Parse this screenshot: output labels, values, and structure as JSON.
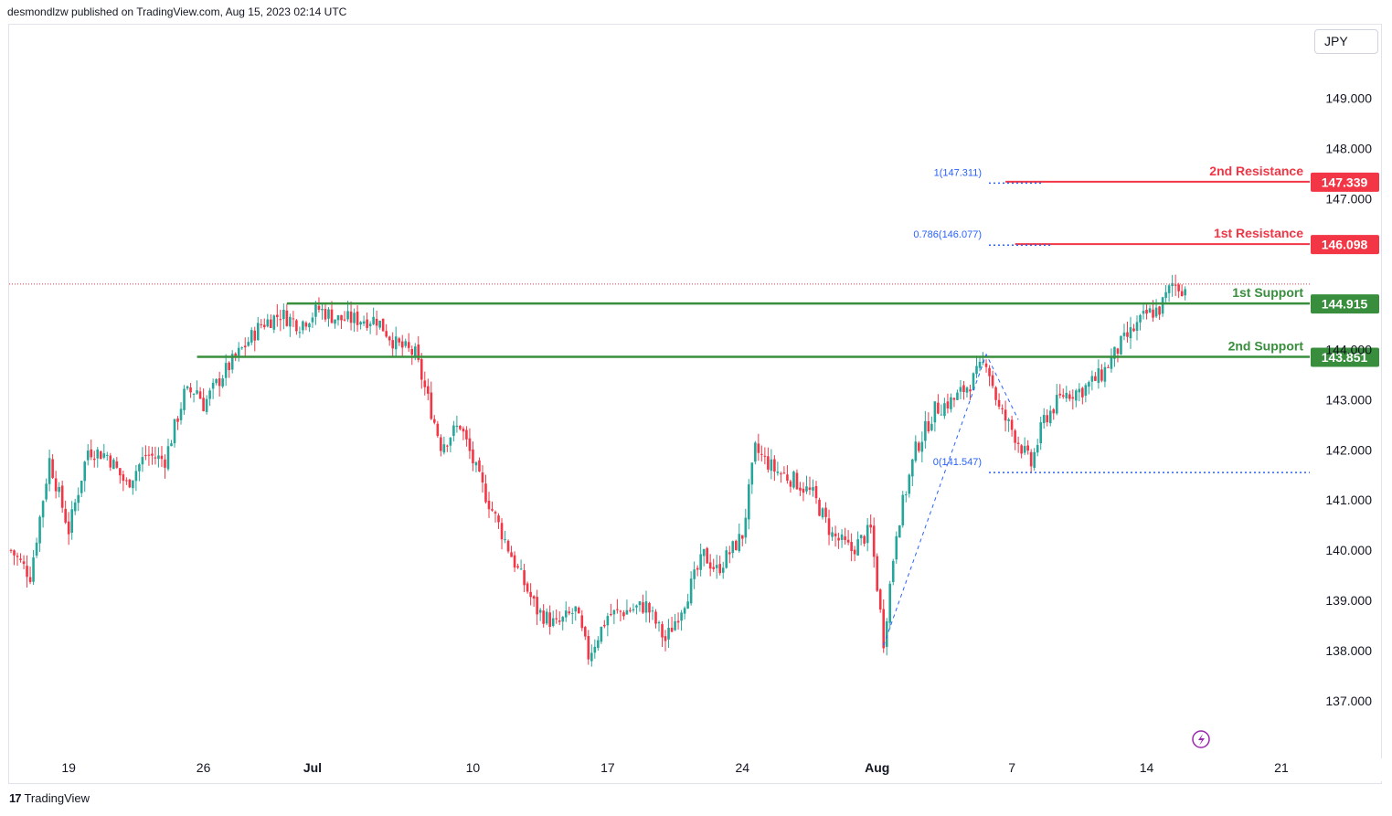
{
  "header": {
    "published_text": "desmondlzw published on TradingView.com, Aug 15, 2023 02:14 UTC"
  },
  "currency": "JPY",
  "footer": {
    "brand": "TradingView",
    "logo_text": "17"
  },
  "colors": {
    "up": "#26a69a",
    "down": "#f23645",
    "support": "#388e3c",
    "resistance": "#f23645",
    "fib": "#2962ff"
  },
  "chart_data": {
    "type": "candlestick",
    "symbol_currency": "JPY",
    "ylim": [
      136.4,
      150.3
    ],
    "y_ticks": [
      137.0,
      138.0,
      139.0,
      140.0,
      141.0,
      142.0,
      143.0,
      144.0,
      147.0,
      148.0,
      149.0
    ],
    "x_ticks": [
      {
        "label": "19",
        "bar": 18
      },
      {
        "label": "26",
        "bar": 60
      },
      {
        "label": "Jul",
        "bar": 94
      },
      {
        "label": "10",
        "bar": 144
      },
      {
        "label": "17",
        "bar": 186
      },
      {
        "label": "24",
        "bar": 228
      },
      {
        "label": "Aug",
        "bar": 270
      },
      {
        "label": "7",
        "bar": 312
      },
      {
        "label": "14",
        "bar": 354
      },
      {
        "label": "21",
        "bar": 396
      }
    ],
    "close_path": [
      [
        0,
        140.0
      ],
      [
        6,
        139.5
      ],
      [
        12,
        141.8
      ],
      [
        18,
        140.4
      ],
      [
        24,
        142.0
      ],
      [
        30,
        141.9
      ],
      [
        36,
        141.3
      ],
      [
        42,
        141.9
      ],
      [
        48,
        141.8
      ],
      [
        54,
        143.1
      ],
      [
        58,
        143.2
      ],
      [
        60,
        142.9
      ],
      [
        66,
        143.5
      ],
      [
        72,
        144.0
      ],
      [
        78,
        144.5
      ],
      [
        84,
        144.7
      ],
      [
        90,
        144.5
      ],
      [
        96,
        144.8
      ],
      [
        102,
        144.6
      ],
      [
        108,
        144.6
      ],
      [
        114,
        144.6
      ],
      [
        120,
        144.1
      ],
      [
        126,
        143.9
      ],
      [
        130,
        143.0
      ],
      [
        134,
        142.1
      ],
      [
        140,
        142.5
      ],
      [
        146,
        141.4
      ],
      [
        152,
        140.5
      ],
      [
        158,
        139.6
      ],
      [
        164,
        138.8
      ],
      [
        170,
        138.5
      ],
      [
        176,
        138.8
      ],
      [
        180,
        137.9
      ],
      [
        186,
        138.7
      ],
      [
        192,
        138.8
      ],
      [
        198,
        138.9
      ],
      [
        204,
        138.2
      ],
      [
        210,
        139.0
      ],
      [
        216,
        139.9
      ],
      [
        220,
        139.6
      ],
      [
        228,
        140.3
      ],
      [
        232,
        142.0
      ],
      [
        238,
        141.6
      ],
      [
        244,
        141.4
      ],
      [
        250,
        141.1
      ],
      [
        256,
        140.3
      ],
      [
        262,
        140.0
      ],
      [
        268,
        140.4
      ],
      [
        272,
        138.2
      ],
      [
        276,
        140.4
      ],
      [
        282,
        142.0
      ],
      [
        288,
        142.8
      ],
      [
        294,
        143.0
      ],
      [
        300,
        143.4
      ],
      [
        304,
        143.8
      ],
      [
        308,
        142.8
      ],
      [
        312,
        142.4
      ],
      [
        318,
        141.7
      ],
      [
        322,
        142.6
      ],
      [
        328,
        143.1
      ],
      [
        334,
        143.2
      ],
      [
        340,
        143.5
      ],
      [
        346,
        144.1
      ],
      [
        350,
        144.4
      ],
      [
        354,
        144.7
      ],
      [
        358,
        144.8
      ],
      [
        362,
        145.3
      ],
      [
        366,
        145.2
      ]
    ],
    "levels": [
      {
        "name": "2nd Resistance",
        "value": 147.339,
        "label": "147.339",
        "kind": "resistance",
        "start_bar": 310
      },
      {
        "name": "1st Resistance",
        "value": 146.098,
        "label": "146.098",
        "kind": "resistance",
        "start_bar": 313
      },
      {
        "name": "1st Support",
        "value": 144.915,
        "label": "144.915",
        "kind": "support",
        "start_bar": 86
      },
      {
        "name": "2nd Support",
        "value": 143.851,
        "label": "143.851",
        "kind": "support",
        "start_bar": 58
      }
    ],
    "fib_levels": [
      {
        "label": "1(147.311)",
        "value": 147.311
      },
      {
        "label": "0.786(146.077)",
        "value": 146.077
      },
      {
        "label": "0(141.547)",
        "value": 141.547
      }
    ],
    "fib_trend": [
      [
        272,
        138.1
      ],
      [
        304,
        143.9
      ],
      [
        314,
        142.6
      ]
    ],
    "last_price": 145.3
  }
}
